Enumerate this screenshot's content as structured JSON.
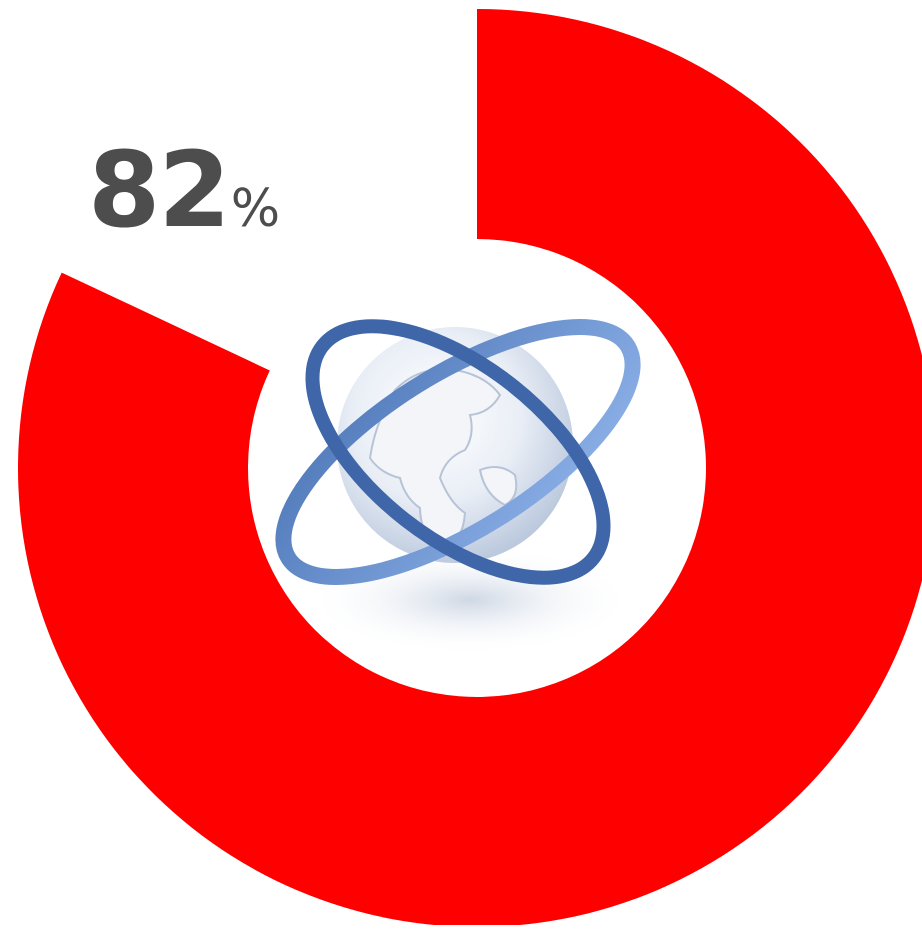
{
  "chart_data": {
    "type": "donut",
    "value": 82,
    "max": 100,
    "value_text": "82",
    "unit_text": "%",
    "colors": {
      "filled": "#ff0000",
      "remaining": "#ffffff",
      "label": "#4d4d4d"
    },
    "center_icon": "globe-with-orbit-rings-icon"
  }
}
